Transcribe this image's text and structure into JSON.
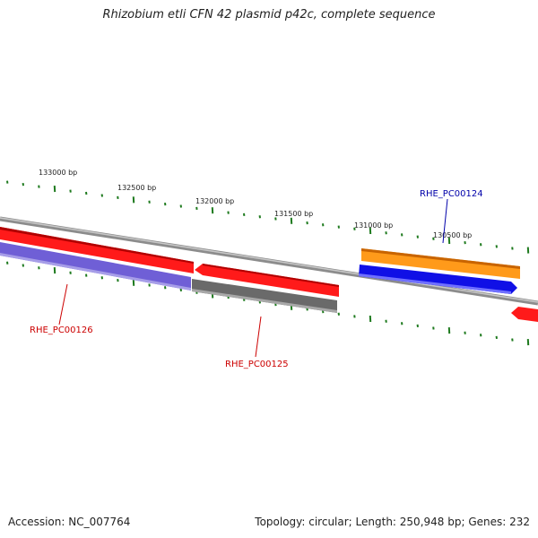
{
  "title": "Rhizobium etli CFN 42 plasmid p42c, complete sequence",
  "footer": {
    "accession": "Accession: NC_007764",
    "summary": "Topology: circular; Length: 250,948 bp; Genes: 232"
  },
  "ruler_labels": [
    "133000 bp",
    "132500 bp",
    "132000 bp",
    "131500 bp",
    "131000 bp",
    "130500 bp"
  ],
  "genes": [
    {
      "name": "RHE_PC00126",
      "color": "#cc0000"
    },
    {
      "name": "RHE_PC00125",
      "color": "#cc0000"
    },
    {
      "name": "RHE_PC00124",
      "color": "#0000aa"
    }
  ],
  "colors": {
    "ruler_ticks": "#1e7a1e",
    "backbone": "#8c8c8c",
    "red_feature": "#ff1a1a",
    "purple_feature": "#6f5fd6",
    "gray_feature": "#6a6a6a",
    "orange_feature": "#ff9a1a",
    "blue_feature": "#1010e6"
  }
}
